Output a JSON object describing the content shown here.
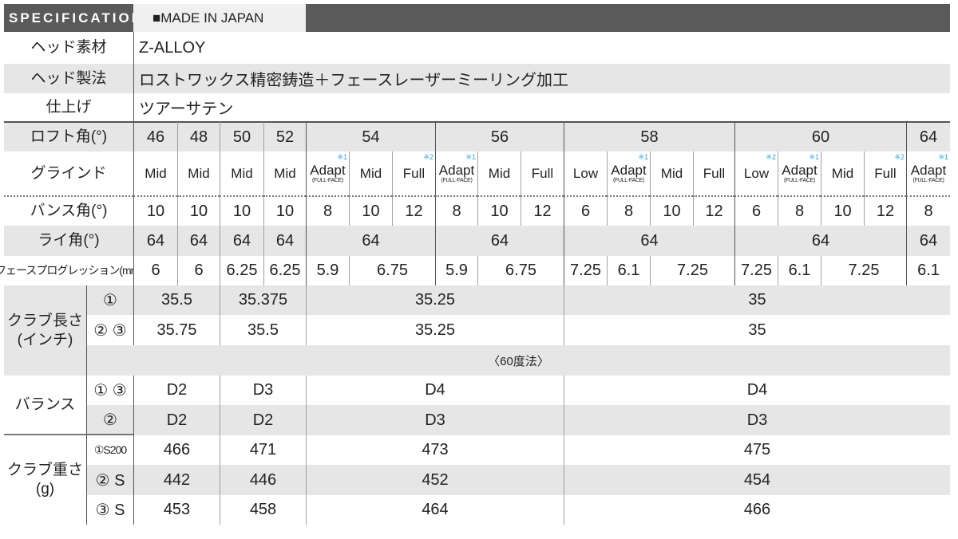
{
  "header": {
    "title": "SPECIFICATION",
    "tab": "■MADE IN JAPAN"
  },
  "spec": [
    {
      "label": "ヘッド素材",
      "value": "Z-ALLOY"
    },
    {
      "label": "ヘッド製法",
      "value": "ロストワックス精密鋳造＋フェースレーザーミーリング加工"
    },
    {
      "label": "仕上げ",
      "value": "ツアーサテン"
    }
  ],
  "loft": {
    "label": "ロフト角(°)",
    "values": [
      "46",
      "48",
      "50",
      "52",
      "54",
      "56",
      "58",
      "60",
      "64"
    ]
  },
  "grind": {
    "label": "グラインド",
    "items": [
      {
        "name": "Mid",
        "note": "",
        "sub": ""
      },
      {
        "name": "Mid",
        "note": "",
        "sub": ""
      },
      {
        "name": "Mid",
        "note": "",
        "sub": ""
      },
      {
        "name": "Mid",
        "note": "",
        "sub": ""
      },
      {
        "name": "Adapt",
        "note": "※1",
        "sub": "(FULL-FACE)"
      },
      {
        "name": "Mid",
        "note": "",
        "sub": ""
      },
      {
        "name": "Full",
        "note": "※2",
        "sub": ""
      },
      {
        "name": "Adapt",
        "note": "※1",
        "sub": "(FULL-FACE)"
      },
      {
        "name": "Mid",
        "note": "",
        "sub": ""
      },
      {
        "name": "Full",
        "note": "",
        "sub": ""
      },
      {
        "name": "Low",
        "note": "",
        "sub": ""
      },
      {
        "name": "Adapt",
        "note": "※1",
        "sub": "(FULL-FACE)"
      },
      {
        "name": "Mid",
        "note": "",
        "sub": ""
      },
      {
        "name": "Full",
        "note": "",
        "sub": ""
      },
      {
        "name": "Low",
        "note": "※2",
        "sub": ""
      },
      {
        "name": "Adapt",
        "note": "※1",
        "sub": "(FULL-FACE)"
      },
      {
        "name": "Mid",
        "note": "",
        "sub": ""
      },
      {
        "name": "Full",
        "note": "※2",
        "sub": ""
      },
      {
        "name": "Adapt",
        "note": "※1",
        "sub": "(FULL-FACE)"
      }
    ]
  },
  "bounce": {
    "label": "バンス角(°)",
    "values": [
      "10",
      "10",
      "10",
      "10",
      "8",
      "10",
      "12",
      "8",
      "10",
      "12",
      "6",
      "8",
      "10",
      "12",
      "6",
      "8",
      "10",
      "12",
      "8"
    ]
  },
  "lie": {
    "label": "ライ角(°)",
    "values": [
      "64",
      "64",
      "64",
      "64",
      "64",
      "64",
      "64",
      "64",
      "64"
    ]
  },
  "progression": {
    "label": "フェースプログレッション(mm)",
    "values": [
      "6",
      "6",
      "6.25",
      "6.25",
      "5.9",
      "6.75",
      "5.9",
      "6.75",
      "7.25",
      "6.1",
      "7.25",
      "7.25",
      "6.1",
      "7.25",
      "6.1"
    ]
  },
  "length": {
    "label": "クラブ長さ\n(インチ)",
    "rows": [
      {
        "sub": "①",
        "values": [
          "35.5",
          "35.375",
          "35.25",
          "35"
        ]
      },
      {
        "sub": "② ③",
        "values": [
          "35.75",
          "35.5",
          "35.25",
          "35"
        ]
      }
    ],
    "method": "〈60度法〉"
  },
  "balance": {
    "label": "バランス",
    "rows": [
      {
        "sub": "① ③",
        "values": [
          "D2",
          "D3",
          "D4",
          "D4"
        ]
      },
      {
        "sub": "②",
        "values": [
          "D2",
          "D2",
          "D3",
          "D3"
        ]
      }
    ]
  },
  "weight": {
    "label": "クラブ重さ\n(g)",
    "rows": [
      {
        "sub": "①S200",
        "values": [
          "466",
          "471",
          "473",
          "475"
        ]
      },
      {
        "sub": "② S",
        "values": [
          "442",
          "446",
          "452",
          "454"
        ]
      },
      {
        "sub": "③ S",
        "values": [
          "453",
          "458",
          "464",
          "466"
        ]
      }
    ]
  },
  "colors": {
    "header": "#5a5a5a",
    "row_alt": "#e6e6e6",
    "note": "#29a8e0"
  }
}
